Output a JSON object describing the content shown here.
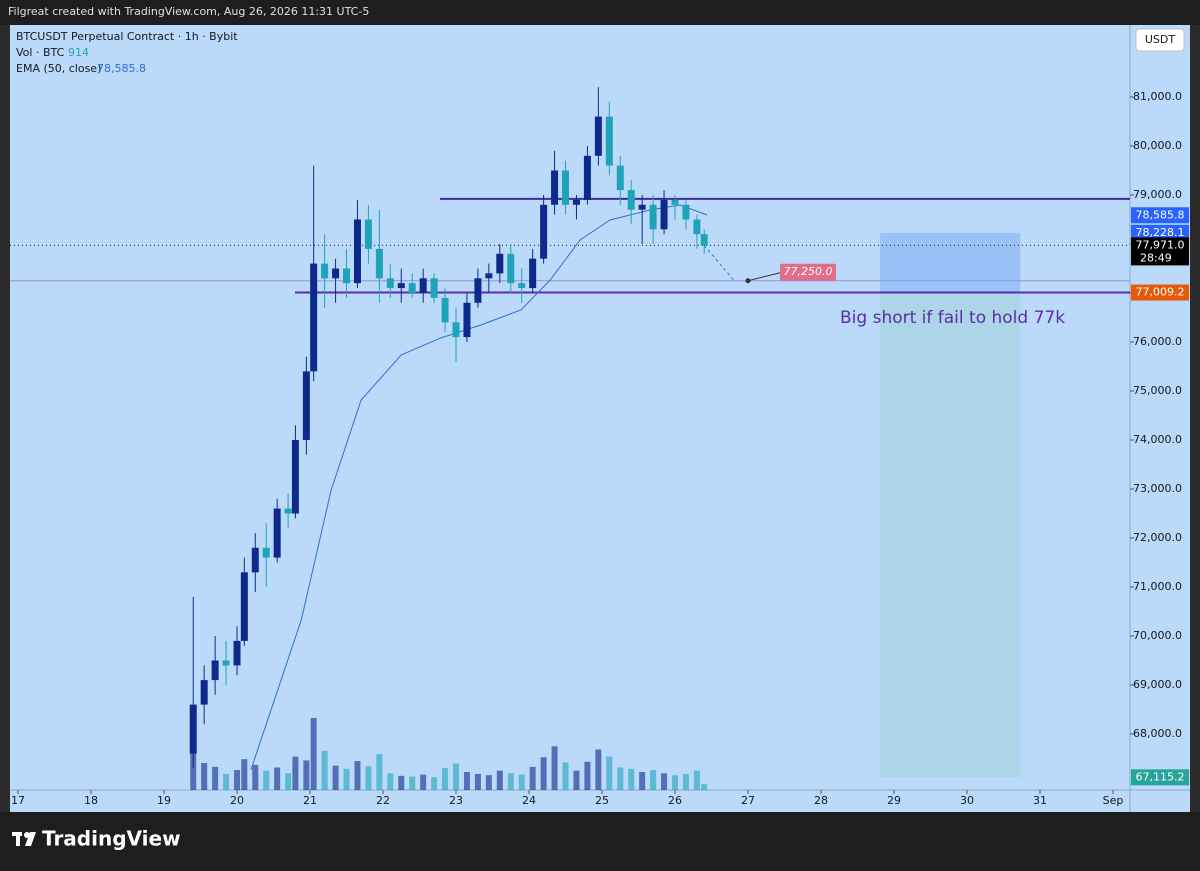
{
  "header": {
    "credit": "Filgreat created with TradingView.com, Aug 26, 2026 11:31 UTC-5"
  },
  "brand": "TradingView",
  "chart_data": {
    "type": "candlestick",
    "title": "BTCUSDT Perpetual Contract · 1h · Bybit",
    "currency": "USDT",
    "xlim": [
      16.89,
      32.233
    ],
    "xticks": [
      17,
      18,
      19,
      20,
      21,
      22,
      23,
      24,
      25,
      26,
      27,
      28,
      29,
      30,
      31,
      {
        "value": 32,
        "label": "Sep"
      }
    ],
    "ylim": [
      66857,
      82469
    ],
    "yticks": [
      {
        "value": 68000,
        "label": "68,000.0"
      },
      {
        "value": 69000,
        "label": "69,000.0"
      },
      {
        "value": 70000,
        "label": "70,000.0"
      },
      {
        "value": 71000,
        "label": "71,000.0"
      },
      {
        "value": 72000,
        "label": "72,000.0"
      },
      {
        "value": 73000,
        "label": "73,000.0"
      },
      {
        "value": 74000,
        "label": "74,000.0"
      },
      {
        "value": 75000,
        "label": "75,000.0"
      },
      {
        "value": 76000,
        "label": "76,000.0"
      },
      {
        "value": 77000,
        "label": "77,000.0"
      },
      {
        "value": 78000,
        "label": "78,000.0"
      },
      {
        "value": 79000,
        "label": "79,000.0"
      },
      {
        "value": 80000,
        "label": "80,000.0"
      },
      {
        "value": 81000,
        "label": "81,000.0"
      }
    ],
    "up_color": "#0d2a8a",
    "down_color": "#1fa3b8",
    "x": [
      19.4,
      19.55,
      19.7,
      19.85,
      20.0,
      20.1,
      20.25,
      20.4,
      20.55,
      20.7,
      20.8,
      20.95,
      21.05,
      21.2,
      21.35,
      21.5,
      21.65,
      21.8,
      21.95,
      22.1,
      22.25,
      22.4,
      22.55,
      22.7,
      22.85,
      23.0,
      23.15,
      23.3,
      23.45,
      23.6,
      23.75,
      23.9,
      24.05,
      24.2,
      24.35,
      24.5,
      24.65,
      24.8,
      24.95,
      25.1,
      25.25,
      25.4,
      25.55,
      25.7,
      25.85,
      26.0,
      26.15,
      26.3,
      26.4
    ],
    "open": [
      67600,
      68600,
      69100,
      69500,
      69400,
      69900,
      71300,
      71800,
      71600,
      72600,
      72500,
      74000,
      75400,
      77600,
      77300,
      77500,
      77200,
      78500,
      77900,
      77300,
      77100,
      77200,
      77000,
      77300,
      76900,
      76400,
      76100,
      76800,
      77300,
      77400,
      77800,
      77200,
      77100,
      77700,
      78800,
      79500,
      78800,
      78900,
      79800,
      80600,
      79600,
      79100,
      78700,
      78800,
      78300,
      78900,
      78800,
      78500,
      78200
    ],
    "high": [
      70800,
      69400,
      70000,
      69900,
      70200,
      71600,
      72100,
      72300,
      72800,
      72900,
      74300,
      75700,
      79600,
      78200,
      77700,
      77900,
      78900,
      78800,
      78700,
      77600,
      77500,
      77400,
      77500,
      77400,
      77100,
      76700,
      77000,
      77500,
      77600,
      78000,
      78000,
      77500,
      77900,
      79000,
      79900,
      79700,
      79000,
      80000,
      81200,
      80900,
      79800,
      79300,
      79000,
      79000,
      79100,
      79000,
      78900,
      78600,
      78300
    ],
    "low": [
      67300,
      68200,
      68800,
      69000,
      69200,
      69800,
      70900,
      71000,
      71500,
      72200,
      72400,
      73700,
      75200,
      76700,
      76800,
      76900,
      77100,
      77600,
      76800,
      76900,
      76800,
      76900,
      76800,
      76800,
      76200,
      75600,
      76000,
      76700,
      77000,
      77200,
      77000,
      76800,
      77000,
      77600,
      78600,
      78600,
      78500,
      78800,
      79600,
      79400,
      78800,
      78400,
      78000,
      78000,
      78200,
      78500,
      78300,
      77900,
      77800
    ],
    "close": [
      68600,
      69100,
      69500,
      69400,
      69900,
      71300,
      71800,
      71600,
      72600,
      72500,
      74000,
      75400,
      77600,
      77300,
      77500,
      77200,
      78500,
      77900,
      77300,
      77100,
      77200,
      77000,
      77300,
      76900,
      76400,
      76100,
      76800,
      77300,
      77400,
      77800,
      77200,
      77100,
      77700,
      78800,
      79500,
      78800,
      78900,
      79800,
      80600,
      79600,
      79100,
      78700,
      78800,
      78300,
      78900,
      78800,
      78500,
      78200,
      77971
    ],
    "volume": {
      "name": "Vol · BTC",
      "last": 914,
      "values": [
        9800,
        4200,
        3600,
        2500,
        3100,
        4800,
        3900,
        3000,
        3500,
        2600,
        5200,
        4600,
        11200,
        6100,
        3800,
        3300,
        4500,
        3700,
        5600,
        2600,
        2200,
        2100,
        2400,
        2000,
        3400,
        4100,
        2800,
        2500,
        2300,
        3000,
        2600,
        2400,
        3600,
        5100,
        6800,
        4300,
        3000,
        4400,
        6300,
        5200,
        3500,
        3300,
        2800,
        3100,
        2600,
        2300,
        2500,
        3000,
        914
      ]
    },
    "ema": {
      "name": "EMA (50, close)",
      "last": {
        "value": 78585.8,
        "label": "78,585.8"
      },
      "color": "#2f6fd0",
      "x": [
        20.19,
        20.88,
        21.29,
        21.7,
        22.25,
        22.79,
        23.34,
        23.89,
        24.29,
        24.7,
        25.11,
        25.66,
        26.07,
        26.44
      ],
      "values": [
        67265,
        70327,
        72980,
        74816,
        75735,
        76082,
        76347,
        76653,
        77265,
        78082,
        78490,
        78694,
        78796,
        78592
      ]
    },
    "levels": [
      {
        "value": 78920,
        "color": "#4527a0"
      },
      {
        "value": 77009.2,
        "color": "#5b2bb0"
      },
      {
        "value": 77250,
        "color": "#9a8fd8"
      }
    ],
    "last_price": 77971,
    "price_tags": [
      {
        "value": 78585.8,
        "label": "78,585.8",
        "color": "#2962ff"
      },
      {
        "value": 78228.1,
        "label": "78,228.1",
        "color": "#2962ff"
      },
      {
        "value": 77971,
        "label": "77,971.0",
        "color": "#000000",
        "countdown": "28:49"
      },
      {
        "value": 77009.2,
        "label": "77,009.2",
        "color": "#e8590c"
      },
      {
        "value": 67115.2,
        "label": "67,115.2",
        "color": "#26a69a"
      }
    ],
    "position": {
      "x0": 28.81,
      "x1": 30.73,
      "stop": 78228.1,
      "entry": 77009.2,
      "target": 67115.2
    },
    "projection": {
      "value": 77250,
      "label": "77,250.0",
      "color": "#e26d8a"
    },
    "annotation": "Big short if fail to hold 77k"
  }
}
